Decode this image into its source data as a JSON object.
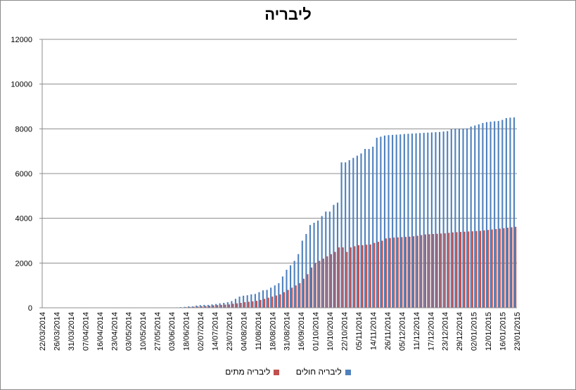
{
  "chart_data": {
    "type": "bar",
    "title": "ליבריה",
    "xlabel": "",
    "ylabel": "",
    "ylim": [
      0,
      12000
    ],
    "yticks": [
      0,
      2000,
      4000,
      6000,
      8000,
      10000,
      12000
    ],
    "grid": true,
    "legend_position": "bottom",
    "x_tick_labels": [
      "22/03/2014",
      "26/03/2014",
      "31/03/2014",
      "07/04/2014",
      "16/04/2014",
      "23/04/2014",
      "03/05/2014",
      "10/05/2014",
      "27/05/2014",
      "03/06/2014",
      "18/06/2014",
      "02/07/2014",
      "14/07/2014",
      "23/07/2014",
      "04/08/2014",
      "11/08/2014",
      "18/08/2014",
      "31/08/2014",
      "16/09/2014",
      "01/10/2014",
      "10/10/2014",
      "22/10/2014",
      "05/11/2014",
      "14/11/2014",
      "26/11/2014",
      "05/12/2014",
      "11/12/2014",
      "17/12/2014",
      "23/12/2014",
      "29/12/2014",
      "02/01/2015",
      "12/01/2015",
      "16/01/2015",
      "23/01/2015"
    ],
    "series": [
      {
        "name": "ליבריה חולים",
        "color": "#4f81bd",
        "values": [
          0,
          8,
          8,
          10,
          10,
          10,
          10,
          10,
          10,
          12,
          12,
          12,
          12,
          12,
          12,
          12,
          12,
          12,
          12,
          12,
          12,
          12,
          12,
          12,
          13,
          13,
          13,
          13,
          13,
          15,
          16,
          16,
          16,
          16,
          18,
          30,
          40,
          60,
          60,
          100,
          120,
          130,
          130,
          150,
          170,
          200,
          220,
          250,
          300,
          400,
          500,
          540,
          560,
          600,
          620,
          700,
          780,
          800,
          900,
          1000,
          1100,
          1400,
          1700,
          1900,
          2100,
          2400,
          3000,
          3300,
          3700,
          3800,
          3900,
          4100,
          4300,
          4300,
          4600,
          4700,
          6500,
          6500,
          6600,
          6700,
          6800,
          6900,
          7100,
          7100,
          7200,
          7600,
          7650,
          7700,
          7720,
          7730,
          7740,
          7750,
          7770,
          7780,
          7790,
          7800,
          7810,
          7820,
          7830,
          7840,
          7850,
          7860,
          7880,
          7900,
          7980,
          8000,
          8000,
          8010,
          8020,
          8100,
          8150,
          8200,
          8260,
          8300,
          8320,
          8340,
          8350,
          8400,
          8480,
          8500,
          8510
        ]
      },
      {
        "name": "ליבריה מתים",
        "color": "#c0504d",
        "values": [
          0,
          0,
          0,
          0,
          0,
          0,
          0,
          0,
          0,
          0,
          0,
          0,
          0,
          0,
          0,
          0,
          0,
          0,
          0,
          0,
          0,
          0,
          0,
          0,
          0,
          0,
          0,
          0,
          0,
          0,
          0,
          0,
          0,
          0,
          10,
          15,
          25,
          40,
          50,
          60,
          70,
          80,
          90,
          110,
          120,
          130,
          140,
          150,
          180,
          200,
          220,
          250,
          270,
          290,
          310,
          350,
          400,
          450,
          500,
          550,
          600,
          700,
          800,
          900,
          1000,
          1100,
          1300,
          1500,
          1800,
          2000,
          2100,
          2200,
          2300,
          2400,
          2500,
          2700,
          2700,
          2500,
          2700,
          2750,
          2800,
          2800,
          2820,
          2830,
          2900,
          2950,
          3000,
          3100,
          3120,
          3140,
          3150,
          3160,
          3170,
          3180,
          3200,
          3220,
          3250,
          3280,
          3290,
          3300,
          3310,
          3320,
          3330,
          3350,
          3370,
          3380,
          3390,
          3400,
          3410,
          3420,
          3430,
          3440,
          3460,
          3480,
          3500,
          3520,
          3540,
          3560,
          3580,
          3600,
          3620
        ]
      }
    ]
  }
}
